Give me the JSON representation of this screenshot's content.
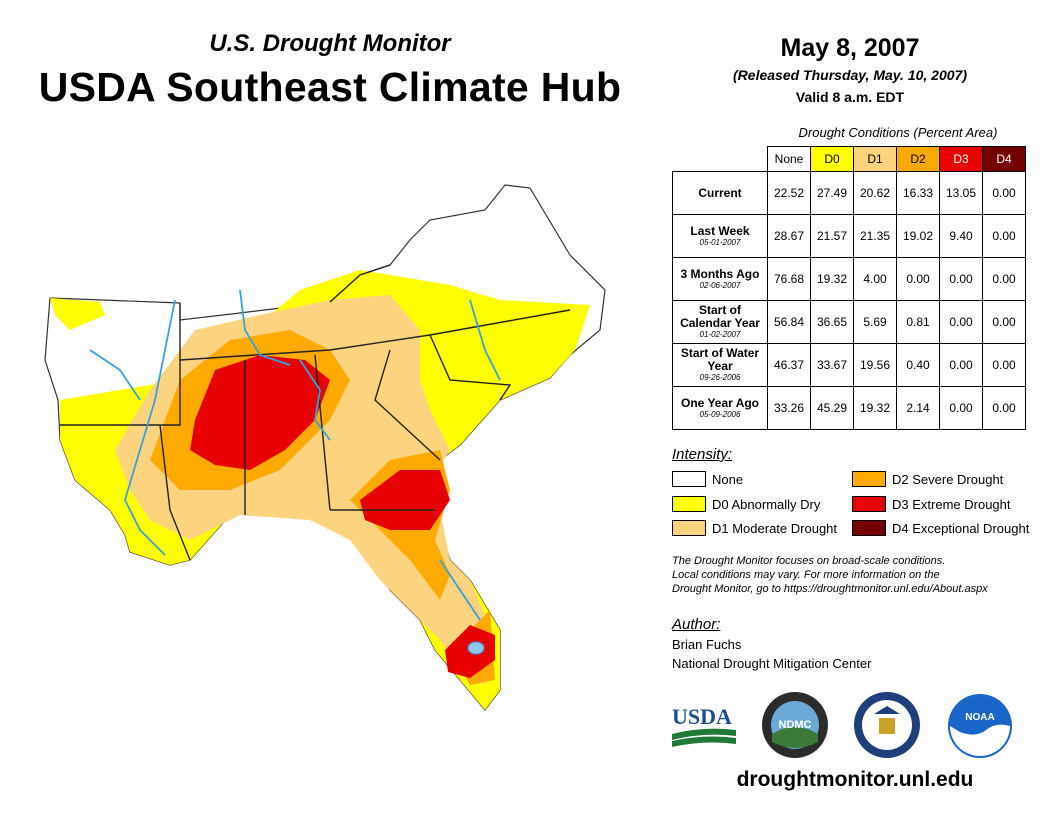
{
  "header": {
    "subtitle": "U.S. Drought Monitor",
    "title": "USDA Southeast Climate Hub",
    "date": "May 8, 2007",
    "released": "(Released Thursday, May. 10, 2007)",
    "valid": "Valid 8 a.m. EDT"
  },
  "table": {
    "caption": "Drought Conditions (Percent Area)",
    "columns": [
      "None",
      "D0",
      "D1",
      "D2",
      "D3",
      "D4"
    ],
    "column_colors": [
      "#ffffff",
      "#ffff00",
      "#fcd37f",
      "#ffaa00",
      "#e60000",
      "#730000"
    ],
    "rows": [
      {
        "label": "Current",
        "date": "",
        "values": [
          "22.52",
          "27.49",
          "20.62",
          "16.33",
          "13.05",
          "0.00"
        ]
      },
      {
        "label": "Last Week",
        "date": "05-01-2007",
        "values": [
          "28.67",
          "21.57",
          "21.35",
          "19.02",
          "9.40",
          "0.00"
        ]
      },
      {
        "label": "3 Months Ago",
        "date": "02-06-2007",
        "values": [
          "76.68",
          "19.32",
          "4.00",
          "0.00",
          "0.00",
          "0.00"
        ]
      },
      {
        "label": "Start of Calendar Year",
        "date": "01-02-2007",
        "values": [
          "56.84",
          "36.65",
          "5.69",
          "0.81",
          "0.00",
          "0.00"
        ]
      },
      {
        "label": "Start of Water Year",
        "date": "09-26-2006",
        "values": [
          "46.37",
          "33.67",
          "19.56",
          "0.40",
          "0.00",
          "0.00"
        ]
      },
      {
        "label": "One Year Ago",
        "date": "05-09-2006",
        "values": [
          "33.26",
          "45.29",
          "19.32",
          "2.14",
          "0.00",
          "0.00"
        ]
      }
    ]
  },
  "legend": {
    "title": "Intensity:",
    "items": [
      {
        "label": "None",
        "color": "#ffffff"
      },
      {
        "label": "D0 Abnormally Dry",
        "color": "#ffff00"
      },
      {
        "label": "D1 Moderate Drought",
        "color": "#fcd37f"
      },
      {
        "label": "D2 Severe Drought",
        "color": "#ffaa00"
      },
      {
        "label": "D3 Extreme Drought",
        "color": "#e60000"
      },
      {
        "label": "D4 Exceptional Drought",
        "color": "#730000"
      }
    ]
  },
  "note": {
    "line1": "The Drought Monitor focuses on broad-scale conditions.",
    "line2": "Local conditions may vary. For more information on the",
    "line3": "Drought Monitor, go to https://droughtmonitor.unl.edu/About.aspx"
  },
  "author": {
    "label": "Author:",
    "name": "Brian Fuchs",
    "org": "National Drought Mitigation Center"
  },
  "logos": {
    "usda": "USDA",
    "ndmc": "NDMC",
    "noaa": "NOAA"
  },
  "footer": {
    "site": "droughtmonitor.unl.edu"
  }
}
